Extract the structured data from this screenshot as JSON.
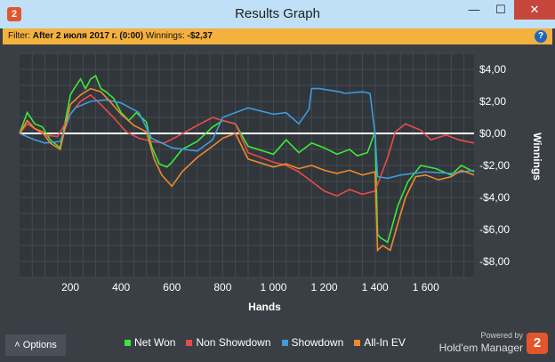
{
  "window": {
    "title": "Results Graph",
    "icon": "app-logo-icon",
    "logo_text": "2",
    "minimize": "—",
    "maximize": "☐",
    "close": "✕"
  },
  "filter": {
    "label": "Filter:",
    "value": "After 2 июля 2017 г. (0:00)",
    "winnings_label": "Winnings:",
    "winnings_value": "-$2,37",
    "help": "?"
  },
  "chart_data": {
    "type": "line",
    "xlabel": "Hands",
    "ylabel": "Winnings",
    "xlim": [
      0,
      1790
    ],
    "ylim": [
      -9,
      5
    ],
    "x_ticks": [
      200,
      400,
      600,
      800,
      1000,
      1200,
      1400,
      1600
    ],
    "x_tick_labels": [
      "200",
      "400",
      "600",
      "800",
      "1 000",
      "1 200",
      "1 400",
      "1 600"
    ],
    "y_ticks": [
      4,
      2,
      0,
      -2,
      -4,
      -6,
      -8
    ],
    "y_tick_labels": [
      "$4,00",
      "$2,00",
      "$0,00",
      "-$2,00",
      "-$4,00",
      "-$6,00",
      "-$8,00"
    ],
    "grid": true,
    "legend": "bottom",
    "series": [
      {
        "name": "Net Won",
        "color": "#3ce83c",
        "x": [
          0,
          30,
          60,
          90,
          120,
          160,
          200,
          215,
          240,
          260,
          280,
          300,
          320,
          340,
          370,
          400,
          430,
          460,
          500,
          520,
          550,
          580,
          600,
          640,
          700,
          760,
          800,
          850,
          900,
          1000,
          1050,
          1100,
          1150,
          1200,
          1250,
          1300,
          1330,
          1370,
          1400,
          1410,
          1420,
          1450,
          1490,
          1530,
          1580,
          1640,
          1700,
          1740,
          1790
        ],
        "y": [
          0,
          1.3,
          0.6,
          0.4,
          -0.4,
          -0.9,
          2.4,
          2.8,
          3.4,
          2.8,
          3.4,
          3.6,
          2.8,
          2.6,
          2.2,
          1.3,
          0.8,
          1.3,
          0.7,
          -0.8,
          -1.9,
          -2.1,
          -1.8,
          -1.0,
          -0.5,
          0.4,
          0.8,
          0.6,
          -0.8,
          -1.3,
          -0.4,
          -1.2,
          -0.6,
          -0.9,
          -1.3,
          -1.0,
          -1.4,
          -1.2,
          0.1,
          -6.3,
          -6.5,
          -6.8,
          -4.5,
          -3.0,
          -2.0,
          -2.2,
          -2.6,
          -2.0,
          -2.4
        ]
      },
      {
        "name": "Non Showdown",
        "color": "#e84b4b",
        "x": [
          0,
          30,
          60,
          100,
          150,
          200,
          240,
          280,
          320,
          370,
          420,
          470,
          520,
          570,
          620,
          700,
          760,
          800,
          850,
          900,
          950,
          1000,
          1050,
          1100,
          1150,
          1200,
          1250,
          1300,
          1350,
          1400,
          1450,
          1480,
          1520,
          1580,
          1620,
          1680,
          1730,
          1790
        ],
        "y": [
          0,
          0.6,
          0.3,
          -0.1,
          -0.2,
          1.2,
          2.0,
          2.4,
          1.8,
          1.0,
          0.1,
          -0.3,
          -0.5,
          -0.6,
          -0.2,
          0.5,
          1.0,
          0.8,
          0.6,
          -1.2,
          -1.5,
          -1.8,
          -2.0,
          -2.4,
          -3.0,
          -3.6,
          -3.9,
          -3.5,
          -3.8,
          -3.6,
          -1.5,
          0.1,
          0.6,
          0.2,
          -0.4,
          -0.1,
          -0.4,
          -0.6
        ]
      },
      {
        "name": "Showdown",
        "color": "#3e9bdc",
        "x": [
          0,
          60,
          100,
          160,
          200,
          220,
          280,
          340,
          400,
          470,
          520,
          600,
          700,
          760,
          800,
          900,
          1000,
          1050,
          1100,
          1140,
          1150,
          1180,
          1220,
          1260,
          1280,
          1350,
          1380,
          1400,
          1410,
          1450,
          1500,
          1600,
          1700,
          1790
        ],
        "y": [
          0,
          -0.4,
          -0.6,
          -0.5,
          1.2,
          1.6,
          2.0,
          2.1,
          1.9,
          1.3,
          -0.3,
          -0.9,
          -1.1,
          -0.4,
          1.0,
          1.6,
          1.2,
          1.3,
          0.6,
          1.5,
          2.8,
          2.8,
          2.7,
          2.6,
          2.5,
          2.6,
          2.5,
          0.0,
          -2.7,
          -2.8,
          -2.6,
          -2.4,
          -2.5,
          -2.3
        ]
      },
      {
        "name": "All-In EV",
        "color": "#ee8a2d",
        "x": [
          0,
          30,
          60,
          90,
          120,
          160,
          200,
          240,
          280,
          320,
          350,
          400,
          450,
          500,
          530,
          560,
          600,
          640,
          700,
          760,
          800,
          850,
          900,
          1000,
          1050,
          1100,
          1150,
          1200,
          1250,
          1300,
          1350,
          1400,
          1410,
          1430,
          1460,
          1490,
          1520,
          1560,
          1600,
          1650,
          1700,
          1740,
          1790
        ],
        "y": [
          0,
          0.8,
          0.3,
          0.1,
          -0.6,
          -1.0,
          1.8,
          2.4,
          2.8,
          2.6,
          2.1,
          1.2,
          0.5,
          0.1,
          -1.6,
          -2.6,
          -3.3,
          -2.4,
          -1.5,
          -0.8,
          -0.3,
          0.0,
          -1.6,
          -2.1,
          -1.9,
          -2.2,
          -2.0,
          -2.3,
          -2.5,
          -2.3,
          -2.6,
          -2.4,
          -7.3,
          -7.0,
          -7.3,
          -5.6,
          -4.0,
          -2.7,
          -2.6,
          -2.9,
          -2.7,
          -2.3,
          -2.6
        ]
      }
    ]
  },
  "bottom": {
    "options_label": "Options",
    "powered": "Powered by",
    "brand": "Hold'em Manager",
    "logo": "2"
  }
}
